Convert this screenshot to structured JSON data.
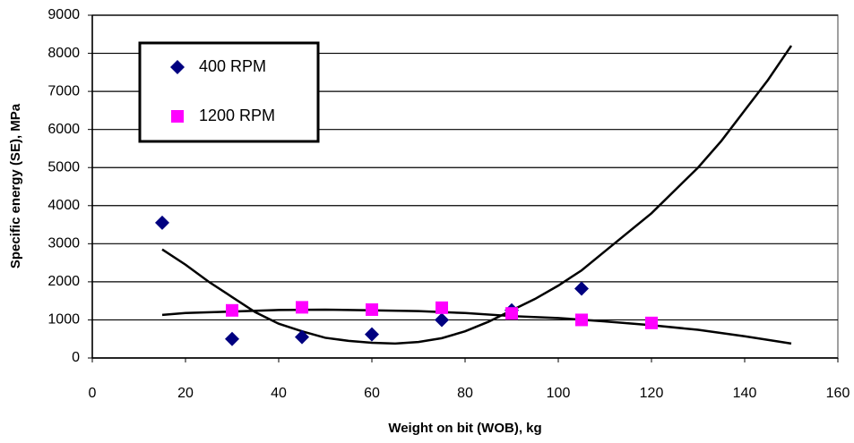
{
  "chart_data": {
    "type": "scatter",
    "xlabel": "Weight on bit (WOB), kg",
    "ylabel": "Specific energy (SE), MPa",
    "xlim": [
      0,
      160
    ],
    "xticks": [
      0,
      20,
      40,
      60,
      80,
      100,
      120,
      140,
      160
    ],
    "ylim": [
      0,
      9000
    ],
    "yticks": [
      0,
      1000,
      2000,
      3000,
      4000,
      5000,
      6000,
      7000,
      8000,
      9000
    ],
    "grid": true,
    "legend": "upper left",
    "series": [
      {
        "name": "400 RPM",
        "color": "#000080",
        "marker": "diamond",
        "x": [
          15,
          30,
          45,
          60,
          75,
          90,
          105
        ],
        "values": [
          3550,
          500,
          550,
          620,
          1000,
          1250,
          1820
        ]
      },
      {
        "name": "1200 RPM",
        "color": "#ff00ff",
        "marker": "square",
        "x": [
          30,
          45,
          60,
          75,
          90,
          105,
          120
        ],
        "values": [
          1250,
          1330,
          1270,
          1320,
          1170,
          1000,
          920
        ]
      }
    ],
    "trendlines": [
      {
        "color": "#000000",
        "x": [
          15,
          20,
          25,
          30,
          35,
          40,
          45,
          50,
          55,
          60,
          65,
          70,
          75,
          80,
          85,
          90,
          95,
          100,
          105,
          110,
          115,
          120,
          125,
          130,
          135,
          140,
          145,
          150
        ],
        "values": [
          2850,
          2450,
          2000,
          1600,
          1200,
          900,
          700,
          530,
          450,
          400,
          380,
          420,
          520,
          700,
          950,
          1250,
          1550,
          1900,
          2300,
          2800,
          3300,
          3800,
          4400,
          5000,
          5700,
          6500,
          7300,
          8200
        ]
      },
      {
        "color": "#000000",
        "x": [
          15,
          20,
          30,
          40,
          50,
          60,
          70,
          80,
          90,
          100,
          110,
          120,
          130,
          140,
          150
        ],
        "values": [
          1130,
          1180,
          1220,
          1260,
          1270,
          1250,
          1230,
          1180,
          1100,
          1050,
          960,
          860,
          740,
          570,
          380
        ]
      }
    ]
  }
}
